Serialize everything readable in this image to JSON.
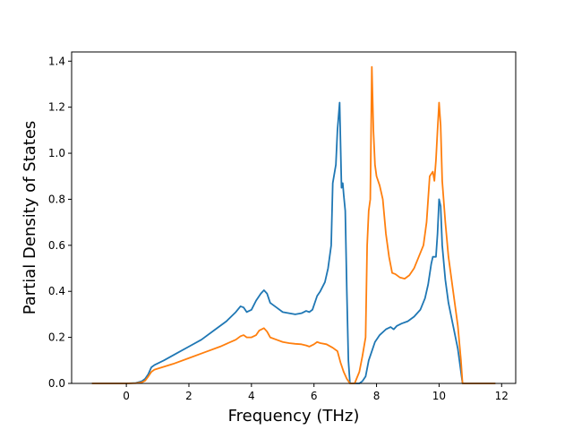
{
  "chart_data": {
    "type": "line",
    "xlabel": "Frequency (THz)",
    "ylabel": "Partial Density of States",
    "xlim": [
      -1.75,
      12.45
    ],
    "ylim": [
      0.0,
      1.44
    ],
    "xticks": [
      0,
      2,
      4,
      6,
      8,
      10,
      12
    ],
    "yticks": [
      0.0,
      0.2,
      0.4,
      0.6,
      0.8,
      1.0,
      1.2,
      1.4
    ],
    "xtick_labels": [
      "0",
      "2",
      "4",
      "6",
      "8",
      "10",
      "12"
    ],
    "ytick_labels": [
      "0.0",
      "0.2",
      "0.4",
      "0.6",
      "0.8",
      "1.0",
      "1.2",
      "1.4"
    ],
    "grid": false,
    "series": [
      {
        "color": "#1f77b4",
        "points": [
          [
            -1.1,
            0.0
          ],
          [
            0.0,
            0.0
          ],
          [
            0.3,
            0.002
          ],
          [
            0.5,
            0.01
          ],
          [
            0.6,
            0.02
          ],
          [
            0.7,
            0.04
          ],
          [
            0.8,
            0.07
          ],
          [
            0.9,
            0.08
          ],
          [
            1.2,
            0.1
          ],
          [
            1.6,
            0.13
          ],
          [
            2.0,
            0.16
          ],
          [
            2.4,
            0.19
          ],
          [
            2.8,
            0.23
          ],
          [
            3.2,
            0.27
          ],
          [
            3.5,
            0.31
          ],
          [
            3.65,
            0.335
          ],
          [
            3.75,
            0.33
          ],
          [
            3.85,
            0.31
          ],
          [
            4.0,
            0.32
          ],
          [
            4.15,
            0.36
          ],
          [
            4.3,
            0.39
          ],
          [
            4.4,
            0.405
          ],
          [
            4.5,
            0.39
          ],
          [
            4.6,
            0.35
          ],
          [
            4.8,
            0.33
          ],
          [
            5.0,
            0.31
          ],
          [
            5.2,
            0.305
          ],
          [
            5.4,
            0.3
          ],
          [
            5.6,
            0.305
          ],
          [
            5.75,
            0.315
          ],
          [
            5.85,
            0.31
          ],
          [
            5.95,
            0.32
          ],
          [
            6.1,
            0.38
          ],
          [
            6.2,
            0.4
          ],
          [
            6.35,
            0.44
          ],
          [
            6.45,
            0.5
          ],
          [
            6.55,
            0.6
          ],
          [
            6.6,
            0.87
          ],
          [
            6.7,
            0.95
          ],
          [
            6.75,
            1.1
          ],
          [
            6.82,
            1.22
          ],
          [
            6.88,
            0.85
          ],
          [
            6.92,
            0.87
          ],
          [
            6.95,
            0.82
          ],
          [
            7.0,
            0.75
          ],
          [
            7.05,
            0.4
          ],
          [
            7.1,
            0.1
          ],
          [
            7.15,
            0.0
          ],
          [
            7.3,
            0.0
          ],
          [
            7.45,
            0.0
          ],
          [
            7.55,
            0.01
          ],
          [
            7.65,
            0.03
          ],
          [
            7.75,
            0.1
          ],
          [
            7.85,
            0.14
          ],
          [
            7.95,
            0.18
          ],
          [
            8.1,
            0.21
          ],
          [
            8.3,
            0.235
          ],
          [
            8.45,
            0.245
          ],
          [
            8.55,
            0.235
          ],
          [
            8.65,
            0.25
          ],
          [
            8.8,
            0.26
          ],
          [
            9.0,
            0.27
          ],
          [
            9.2,
            0.29
          ],
          [
            9.4,
            0.32
          ],
          [
            9.55,
            0.37
          ],
          [
            9.65,
            0.43
          ],
          [
            9.75,
            0.52
          ],
          [
            9.8,
            0.55
          ],
          [
            9.9,
            0.55
          ],
          [
            9.95,
            0.65
          ],
          [
            10.0,
            0.8
          ],
          [
            10.05,
            0.77
          ],
          [
            10.1,
            0.6
          ],
          [
            10.2,
            0.45
          ],
          [
            10.3,
            0.35
          ],
          [
            10.45,
            0.25
          ],
          [
            10.6,
            0.15
          ],
          [
            10.7,
            0.05
          ],
          [
            10.75,
            0.0
          ],
          [
            11.8,
            0.0
          ]
        ]
      },
      {
        "color": "#ff7f0e",
        "points": [
          [
            -1.1,
            0.0
          ],
          [
            0.0,
            0.0
          ],
          [
            0.3,
            0.001
          ],
          [
            0.5,
            0.005
          ],
          [
            0.6,
            0.012
          ],
          [
            0.7,
            0.03
          ],
          [
            0.8,
            0.05
          ],
          [
            0.9,
            0.06
          ],
          [
            1.5,
            0.085
          ],
          [
            2.0,
            0.11
          ],
          [
            2.5,
            0.135
          ],
          [
            3.0,
            0.16
          ],
          [
            3.5,
            0.19
          ],
          [
            3.65,
            0.205
          ],
          [
            3.75,
            0.21
          ],
          [
            3.85,
            0.2
          ],
          [
            4.0,
            0.2
          ],
          [
            4.15,
            0.21
          ],
          [
            4.25,
            0.23
          ],
          [
            4.4,
            0.24
          ],
          [
            4.5,
            0.225
          ],
          [
            4.6,
            0.2
          ],
          [
            4.8,
            0.19
          ],
          [
            5.0,
            0.18
          ],
          [
            5.2,
            0.175
          ],
          [
            5.4,
            0.172
          ],
          [
            5.6,
            0.17
          ],
          [
            5.75,
            0.165
          ],
          [
            5.85,
            0.16
          ],
          [
            6.0,
            0.17
          ],
          [
            6.1,
            0.18
          ],
          [
            6.2,
            0.175
          ],
          [
            6.4,
            0.17
          ],
          [
            6.6,
            0.155
          ],
          [
            6.75,
            0.14
          ],
          [
            6.85,
            0.09
          ],
          [
            6.95,
            0.05
          ],
          [
            7.05,
            0.02
          ],
          [
            7.15,
            0.0
          ],
          [
            7.3,
            0.0
          ],
          [
            7.45,
            0.05
          ],
          [
            7.55,
            0.12
          ],
          [
            7.65,
            0.2
          ],
          [
            7.7,
            0.6
          ],
          [
            7.75,
            0.75
          ],
          [
            7.8,
            0.8
          ],
          [
            7.85,
            1.375
          ],
          [
            7.9,
            1.1
          ],
          [
            7.95,
            0.95
          ],
          [
            8.0,
            0.9
          ],
          [
            8.1,
            0.86
          ],
          [
            8.2,
            0.8
          ],
          [
            8.3,
            0.65
          ],
          [
            8.4,
            0.55
          ],
          [
            8.5,
            0.48
          ],
          [
            8.6,
            0.475
          ],
          [
            8.75,
            0.46
          ],
          [
            8.9,
            0.455
          ],
          [
            9.05,
            0.47
          ],
          [
            9.2,
            0.5
          ],
          [
            9.35,
            0.55
          ],
          [
            9.5,
            0.6
          ],
          [
            9.6,
            0.7
          ],
          [
            9.7,
            0.9
          ],
          [
            9.8,
            0.92
          ],
          [
            9.85,
            0.88
          ],
          [
            9.9,
            0.97
          ],
          [
            9.95,
            1.1
          ],
          [
            10.0,
            1.22
          ],
          [
            10.05,
            1.12
          ],
          [
            10.1,
            0.88
          ],
          [
            10.2,
            0.7
          ],
          [
            10.3,
            0.55
          ],
          [
            10.45,
            0.4
          ],
          [
            10.6,
            0.25
          ],
          [
            10.7,
            0.1
          ],
          [
            10.75,
            0.0
          ],
          [
            11.8,
            0.0
          ]
        ]
      }
    ]
  }
}
